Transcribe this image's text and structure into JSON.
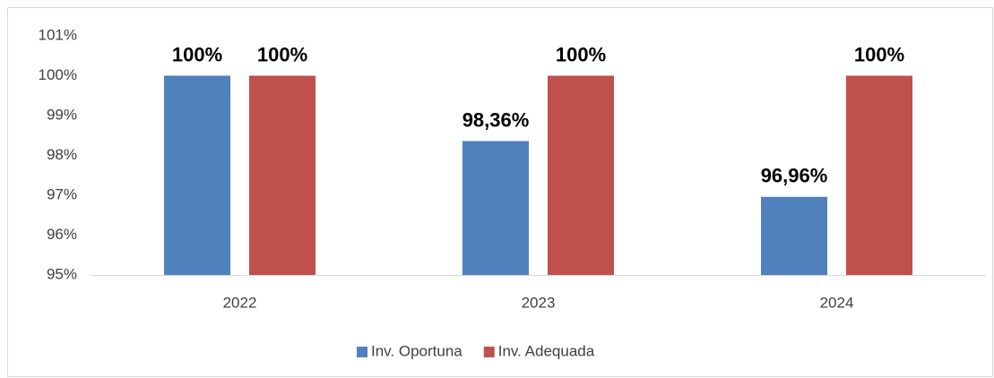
{
  "chart_data": {
    "type": "bar",
    "categories": [
      "2022",
      "2023",
      "2024"
    ],
    "series": [
      {
        "name": "Inv. Oportuna",
        "color": "#4f81bd",
        "values": [
          100,
          98.36,
          96.96
        ],
        "value_labels": [
          "100%",
          "98,36%",
          "96,96%"
        ]
      },
      {
        "name": "Inv. Adequada",
        "color": "#c0504d",
        "values": [
          100,
          100,
          100
        ],
        "value_labels": [
          "100%",
          "100%",
          "100%"
        ]
      }
    ],
    "ylim": [
      95,
      101
    ],
    "yticks": [
      {
        "value": 95,
        "label": "95%"
      },
      {
        "value": 96,
        "label": "96%"
      },
      {
        "value": 97,
        "label": "97%"
      },
      {
        "value": 98,
        "label": "98%"
      },
      {
        "value": 99,
        "label": "99%"
      },
      {
        "value": 100,
        "label": "100%"
      },
      {
        "value": 101,
        "label": "101%"
      }
    ],
    "grid": false,
    "legend": "bottom"
  }
}
